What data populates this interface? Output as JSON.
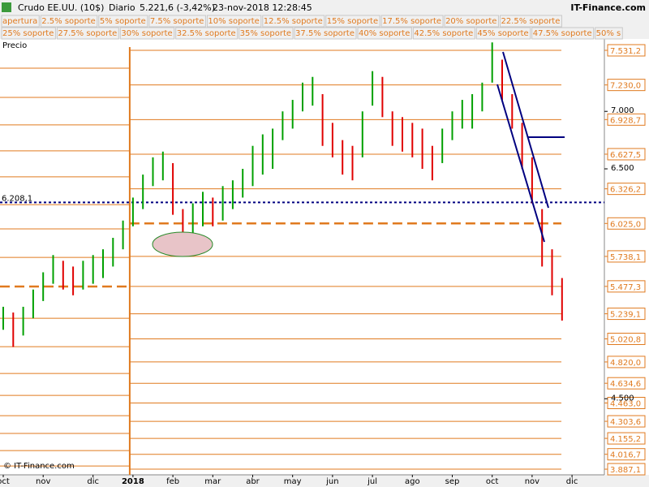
{
  "header": {
    "instrument": "Crudo EE.UU. (10$)",
    "period": "Diario",
    "last": "5.221,6 (-3,42%)",
    "datetime": "23-nov-2018 12:28:45",
    "brand": "IT-Finance.com",
    "legend_rows": [
      [
        "apertura",
        "2.5% soporte",
        "5% soporte",
        "7.5% soporte",
        "10% soporte",
        "12.5% soporte",
        "15% soporte",
        "17.5% soporte",
        "20% soporte",
        "22.5% soporte"
      ],
      [
        "25% soporte",
        "27.5% soporte",
        "30% soporte",
        "32.5% soporte",
        "35% soporte",
        "37.5% soporte",
        "40% soporte",
        "42.5% soporte",
        "45% soporte",
        "47.5% soporte",
        "50% s"
      ]
    ],
    "panel_label": "Precio",
    "copyright": "© IT-Finance.com"
  },
  "chart_data": {
    "type": "ohlc",
    "categories": [
      "oct",
      null,
      null,
      null,
      "nov",
      null,
      null,
      null,
      null,
      "dic",
      null,
      null,
      null,
      "2018",
      null,
      null,
      null,
      "feb",
      null,
      null,
      null,
      "mar",
      null,
      null,
      null,
      "abr",
      null,
      null,
      null,
      "may",
      null,
      null,
      null,
      "jun",
      null,
      null,
      null,
      "jul",
      null,
      null,
      null,
      "ago",
      null,
      null,
      null,
      "sep",
      null,
      null,
      null,
      "oct",
      null,
      null,
      null,
      "nov",
      null,
      null,
      null,
      "dic"
    ],
    "high": [
      5300,
      5250,
      5300,
      5450,
      5600,
      5750,
      5700,
      5650,
      5700,
      5750,
      5800,
      5900,
      6050,
      6250,
      6450,
      6600,
      6650,
      6550,
      6150,
      6200,
      6300,
      6250,
      6350,
      6400,
      6500,
      6700,
      6800,
      6850,
      7000,
      7100,
      7250,
      7300,
      7150,
      6900,
      6750,
      6700,
      7000,
      7350,
      7300,
      7000,
      6950,
      6900,
      6850,
      6700,
      6850,
      7000,
      7100,
      7150,
      7250,
      7600,
      7450,
      7150,
      6900,
      6600,
      6150,
      5800,
      5550,
      null
    ],
    "low": [
      5100,
      4950,
      5050,
      5200,
      5350,
      5500,
      5450,
      5400,
      5450,
      5500,
      5550,
      5650,
      5800,
      6000,
      6150,
      6350,
      6400,
      6100,
      5800,
      5900,
      6000,
      6000,
      6050,
      6150,
      6250,
      6350,
      6450,
      6500,
      6750,
      6850,
      7000,
      7050,
      6700,
      6600,
      6450,
      6400,
      6600,
      7050,
      6950,
      6700,
      6650,
      6600,
      6500,
      6400,
      6550,
      6750,
      6850,
      6850,
      7000,
      7250,
      7100,
      6850,
      6500,
      6200,
      5650,
      5400,
      5180,
      null
    ],
    "up_color": "#00a000",
    "down_color": "#e00000",
    "ylim": [
      3838,
      7630
    ],
    "yticks": [
      {
        "value": 7000,
        "label": "7.000"
      },
      {
        "value": 6500,
        "label": "6.500"
      },
      {
        "value": 4500,
        "label": "4.500"
      }
    ],
    "support_levels": [
      {
        "value": 7531.2,
        "label": "7.531,2"
      },
      {
        "value": 7230.0,
        "label": "7.230,0"
      },
      {
        "value": 6928.7,
        "label": "6.928,7"
      },
      {
        "value": 6627.5,
        "label": "6.627,5"
      },
      {
        "value": 6326.2,
        "label": "6.326,2"
      },
      {
        "value": 6025.0,
        "label": "6.025,0",
        "dashed": true
      },
      {
        "value": 5738.1,
        "label": "5.738,1"
      },
      {
        "value": 5477.3,
        "label": "5.477,3"
      },
      {
        "value": 5239.1,
        "label": "5.239,1"
      },
      {
        "value": 5020.8,
        "label": "5.020,8"
      },
      {
        "value": 4820.0,
        "label": "4.820,0"
      },
      {
        "value": 4634.6,
        "label": "4.634,6"
      },
      {
        "value": 4463.0,
        "label": "4.463,0"
      },
      {
        "value": 4303.6,
        "label": "4.303,6"
      },
      {
        "value": 4155.2,
        "label": "4.155,2"
      },
      {
        "value": 4016.7,
        "label": "4.016,7"
      },
      {
        "value": 3887.1,
        "label": "3.887,1"
      }
    ],
    "prior_levels": [
      7376,
      7122,
      6882,
      6656,
      6430,
      6189,
      5978,
      5730,
      5200,
      4953,
      4720,
      4529,
      4353,
      4198,
      4049,
      3915
    ],
    "prior_dashed_level": 5476,
    "reference_line": {
      "value": 6208.1,
      "label": "6.208,1"
    },
    "level_color": "#e07a1f",
    "reference_color": "#000080"
  }
}
